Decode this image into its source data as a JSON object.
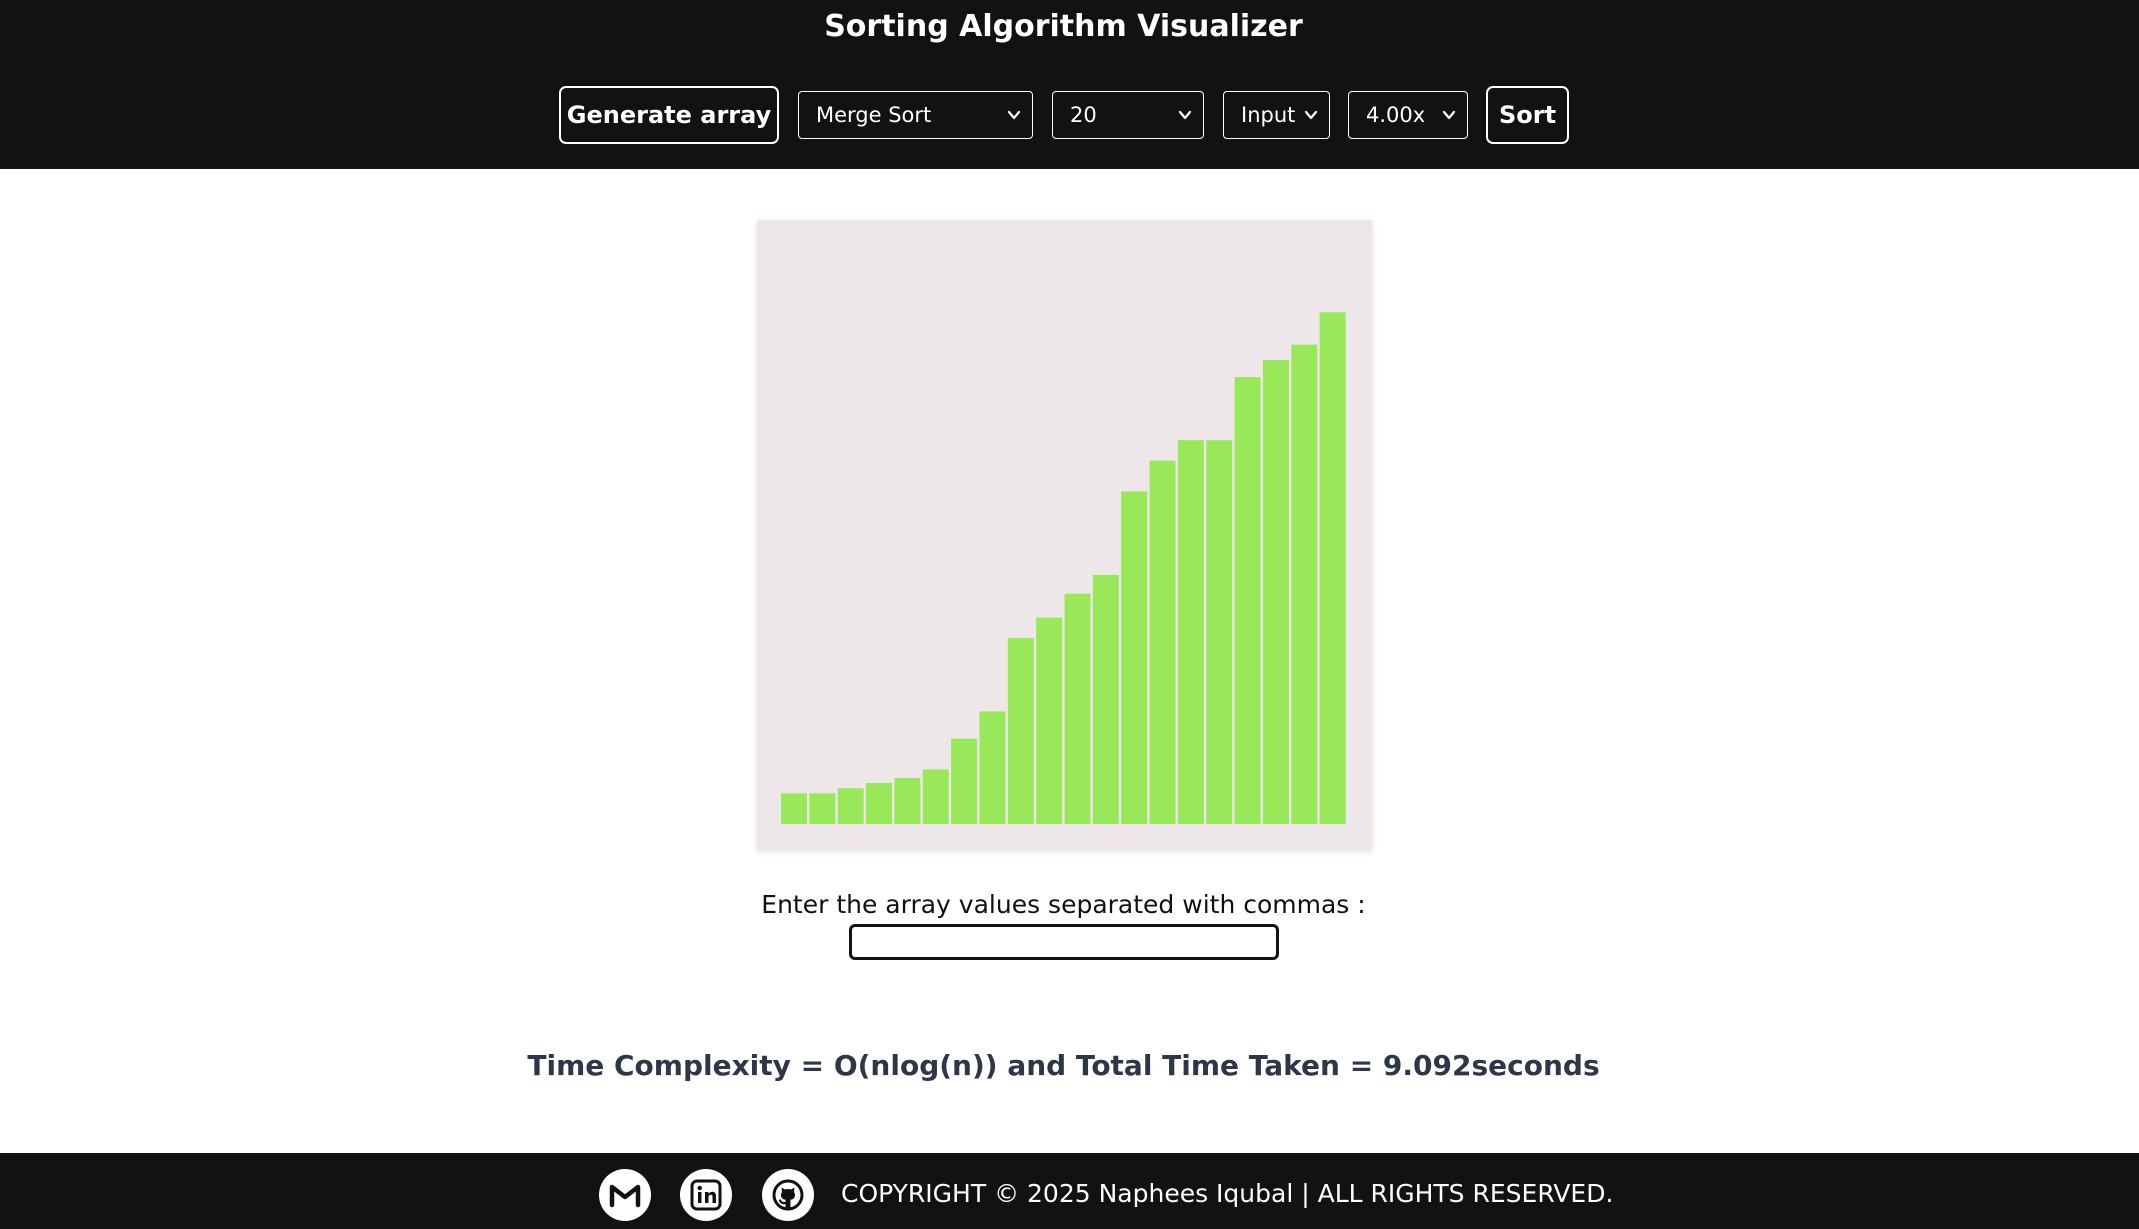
{
  "header": {
    "title": "Sorting Algorithm Visualizer",
    "generate_label": "Generate array",
    "sort_label": "Sort",
    "algorithm_select": {
      "selected": "Merge Sort"
    },
    "size_select": {
      "selected": "20"
    },
    "mode_select": {
      "selected": "Input"
    },
    "speed_select": {
      "selected": "4.00x"
    }
  },
  "chart_data": {
    "type": "bar",
    "bar_color": "#99e85a",
    "background_color": "#eee7ea",
    "values": [
      18,
      18,
      21,
      24,
      27,
      32,
      50,
      66,
      109,
      121,
      135,
      146,
      195,
      213,
      225,
      225,
      262,
      272,
      281,
      300
    ],
    "ylim": [
      0,
      340
    ]
  },
  "input": {
    "label": "Enter the array values separated with commas :",
    "value": "",
    "placeholder": ""
  },
  "stats": {
    "complexity_text": "Time Complexity = O(nlog(n)) and Total Time Taken = 9.092seconds"
  },
  "footer": {
    "copyright": "COPYRIGHT © 2025 Naphees Iqubal | ALL RIGHTS RESERVED.",
    "icons": [
      "gmail-icon",
      "linkedin-icon",
      "github-icon"
    ]
  },
  "colors": {
    "header_bg": "#121212",
    "footer_bg": "#121212",
    "accent_bar": "#99e85a",
    "stats_text": "#2d3748"
  }
}
